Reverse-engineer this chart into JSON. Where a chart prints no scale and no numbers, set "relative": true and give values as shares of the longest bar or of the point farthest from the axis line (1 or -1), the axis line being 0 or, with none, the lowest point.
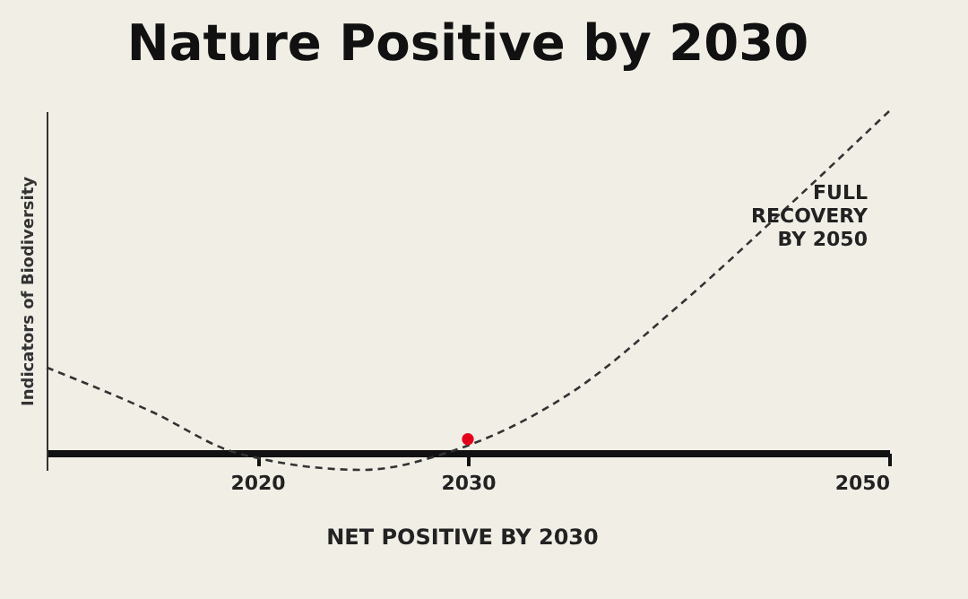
{
  "chart_data": {
    "type": "line",
    "title": "Nature Positive by 2030",
    "ylabel": "Indicators of Biodiversity",
    "relative": true,
    "xlim": [
      2010,
      2050
    ],
    "xticks": [
      2020,
      2030,
      2050
    ],
    "grid": false,
    "series": [
      {
        "color": "#333333",
        "line_style": "dashed",
        "marker": "none",
        "x": [
          2010,
          2015,
          2019,
          2025,
          2029,
          2035,
          2040,
          2045,
          2050
        ],
        "values": [
          0.25,
          0.12,
          0,
          -0.05,
          0,
          0.18,
          0.43,
          0.71,
          1
        ]
      },
      {
        "type": "scatter",
        "color": "#e3001b",
        "marker": "circle",
        "x": [
          2030
        ],
        "values": [
          0.04
        ]
      }
    ],
    "annotations": [
      "NET POSITIVE BY 2030",
      "FULL\nRECOVERY\nBY 2050"
    ]
  }
}
